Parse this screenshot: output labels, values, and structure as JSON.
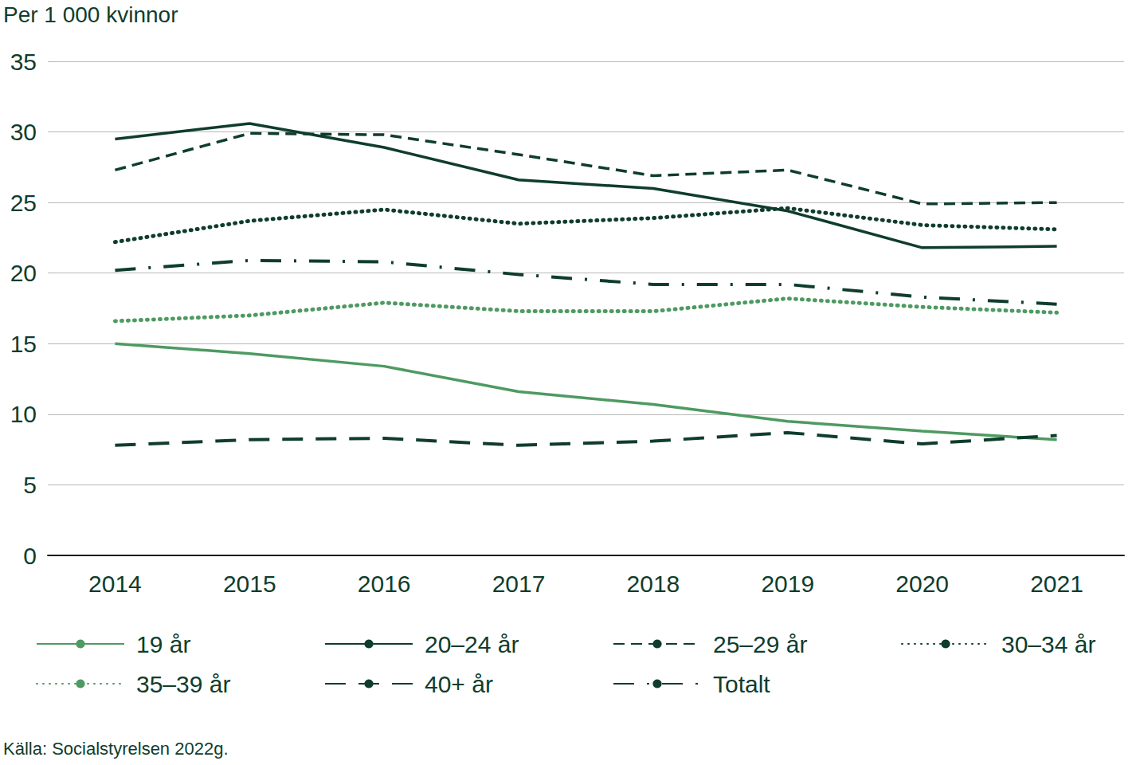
{
  "chart_data": {
    "type": "line",
    "ylabel": "Per 1 000 kvinnor",
    "source": "Källa: Socialstyrelsen 2022g.",
    "categories": [
      "2014",
      "2015",
      "2016",
      "2017",
      "2018",
      "2019",
      "2020",
      "2021"
    ],
    "series": [
      {
        "name": "19 år",
        "color": "#4e9a62",
        "line_style": "solid",
        "values": [
          15.0,
          14.3,
          13.4,
          11.6,
          10.7,
          9.5,
          8.8,
          8.2
        ]
      },
      {
        "name": "20–24 år",
        "color": "#0f3d2c",
        "line_style": "solid",
        "values": [
          29.5,
          30.6,
          28.9,
          26.6,
          26.0,
          24.4,
          21.8,
          21.9
        ]
      },
      {
        "name": "25–29 år",
        "color": "#0f3d2c",
        "line_style": "dashed",
        "values": [
          27.3,
          29.9,
          29.8,
          28.4,
          26.9,
          27.3,
          24.9,
          25.0
        ]
      },
      {
        "name": "30–34 år",
        "color": "#0f3d2c",
        "line_style": "dotted",
        "values": [
          22.2,
          23.7,
          24.5,
          23.5,
          23.9,
          24.6,
          23.4,
          23.1
        ]
      },
      {
        "name": "35–39 år",
        "color": "#4e9a62",
        "line_style": "dotted",
        "values": [
          16.6,
          17.0,
          17.9,
          17.3,
          17.3,
          18.2,
          17.6,
          17.2
        ]
      },
      {
        "name": "40+ år",
        "color": "#0f3d2c",
        "line_style": "longdash",
        "values": [
          7.8,
          8.2,
          8.3,
          7.8,
          8.1,
          8.7,
          7.9,
          8.5
        ]
      },
      {
        "name": "Totalt",
        "color": "#0f3d2c",
        "line_style": "dashdot",
        "values": [
          20.2,
          20.9,
          20.8,
          19.9,
          19.2,
          19.2,
          18.3,
          17.8
        ]
      }
    ],
    "ylim": [
      0,
      35
    ],
    "yticks": [
      0,
      5,
      10,
      15,
      20,
      25,
      30,
      35
    ],
    "grid": true
  }
}
